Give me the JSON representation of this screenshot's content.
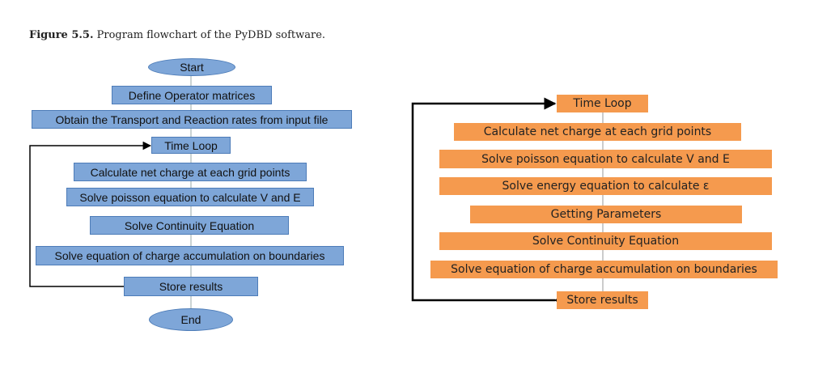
{
  "caption": {
    "label": "Figure 5.5.",
    "text": "Program flowchart of the PyDBD software."
  },
  "left_flowchart": {
    "start": "Start",
    "define_operators": "Define Operator matrices",
    "obtain_rates": "Obtain the Transport and Reaction rates from input file",
    "time_loop": "Time Loop",
    "calc_charge": "Calculate net charge at each grid points",
    "solve_poisson": "Solve poisson equation to calculate V and E",
    "solve_continuity": "Solve Continuity Equation",
    "solve_accumulation": "Solve equation of charge accumulation on boundaries",
    "store_results": "Store results",
    "end": "End"
  },
  "right_flowchart": {
    "time_loop": "Time Loop",
    "calc_charge": "Calculate net charge at each grid points",
    "solve_poisson": "Solve poisson equation to calculate V and E",
    "solve_energy": "Solve energy equation to calculate ε",
    "getting_parameters": "Getting Parameters",
    "solve_continuity": "Solve Continuity Equation",
    "solve_accumulation": "Solve equation of charge accumulation on boundaries",
    "store_results": "Store results"
  },
  "colors": {
    "left_box_fill": "#7ea6d8",
    "right_box_fill": "#f59a4e",
    "connector": "#000000"
  }
}
